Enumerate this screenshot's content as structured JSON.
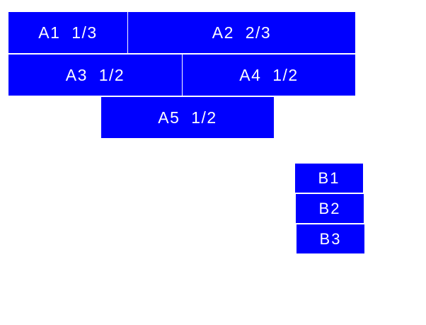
{
  "colors": {
    "box": "#0000ff",
    "text": "#ffffff",
    "background": "#ffffff"
  },
  "group_a": [
    {
      "label": "A1  1/3"
    },
    {
      "label": "A2  2/3"
    },
    {
      "label": "A3  1/2"
    },
    {
      "label": "A4  1/2"
    },
    {
      "label": "A5  1/2"
    }
  ],
  "group_b": [
    {
      "label": "B1"
    },
    {
      "label": "B2"
    },
    {
      "label": "B3"
    }
  ]
}
